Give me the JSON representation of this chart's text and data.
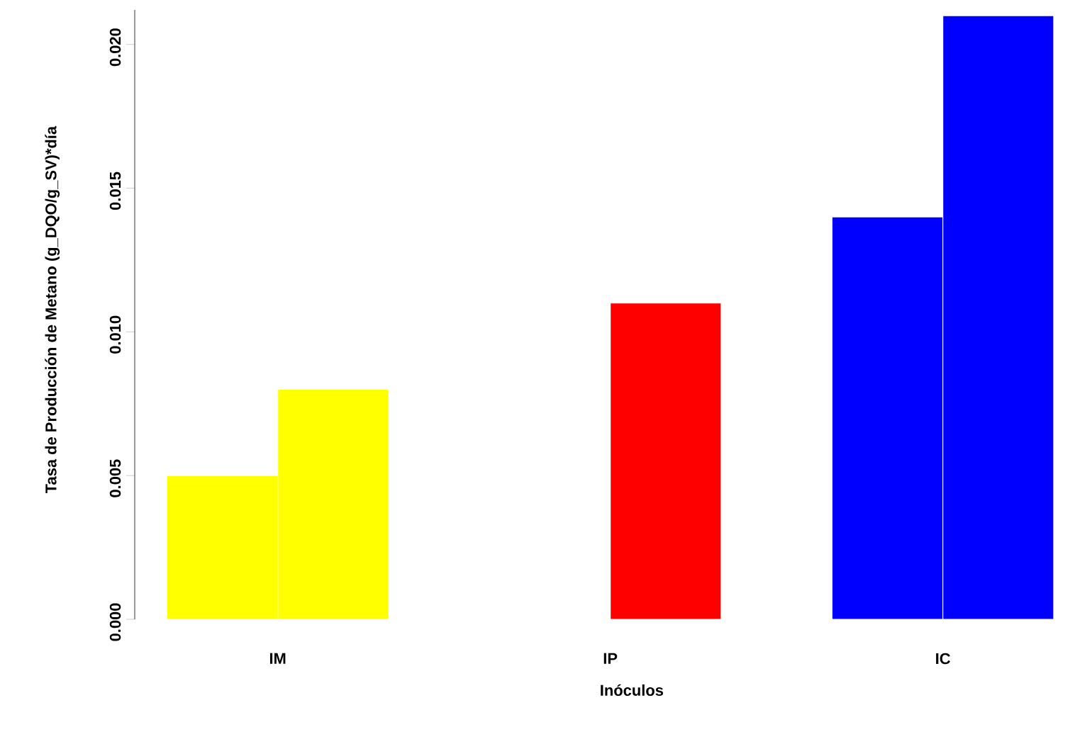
{
  "chart_data": {
    "type": "bar",
    "xlabel": "Inóculos",
    "ylabel": "Tasa de Producción de Metano (g_DQO/g_SV)*día",
    "categories": [
      "IM",
      "IP",
      "IC"
    ],
    "series": [
      {
        "colors": [
          "#ffff00",
          "#ff0000",
          "#0000ff"
        ],
        "values": [
          0.005,
          null,
          0.014
        ]
      },
      {
        "colors": [
          "#ffff00",
          "#ff0000",
          "#0000ff"
        ],
        "values": [
          0.008,
          0.011,
          0.021
        ]
      }
    ],
    "ylim": [
      0,
      0.0212
    ],
    "yticks": [
      {
        "value": 0,
        "label": "0.000"
      },
      {
        "value": 0.005,
        "label": "0.005"
      },
      {
        "value": 0.01,
        "label": "0.010"
      },
      {
        "value": 0.015,
        "label": "0.015"
      },
      {
        "value": 0.02,
        "label": "0.020"
      }
    ],
    "grid": false
  }
}
